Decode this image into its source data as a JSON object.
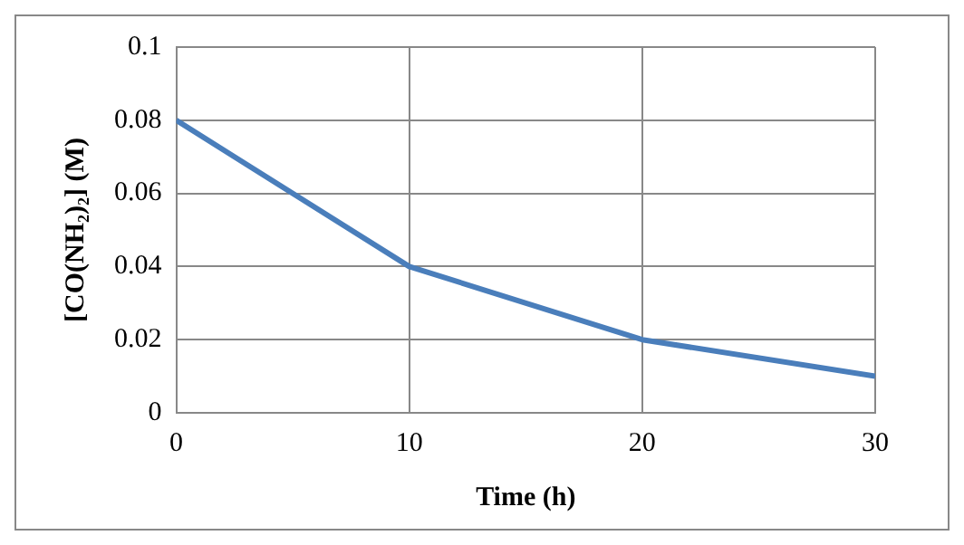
{
  "chart_data": {
    "type": "line",
    "xlabel": "Time (h)",
    "ylabel": "[CO(NH₂)₂] (M)",
    "x": [
      0,
      10,
      20,
      30
    ],
    "series": [
      {
        "color": "#4a7ebb",
        "values": [
          0.08,
          0.04,
          0.02,
          0.01
        ]
      }
    ],
    "xlim": [
      0,
      30
    ],
    "xticks": [
      0,
      10,
      20,
      30
    ],
    "ylim": [
      0,
      0.1
    ],
    "yticks": [
      0,
      0.02,
      0.04,
      0.06,
      0.08,
      0.1
    ],
    "grid": true,
    "legend": false,
    "marker": "none",
    "line_style": "solid"
  }
}
